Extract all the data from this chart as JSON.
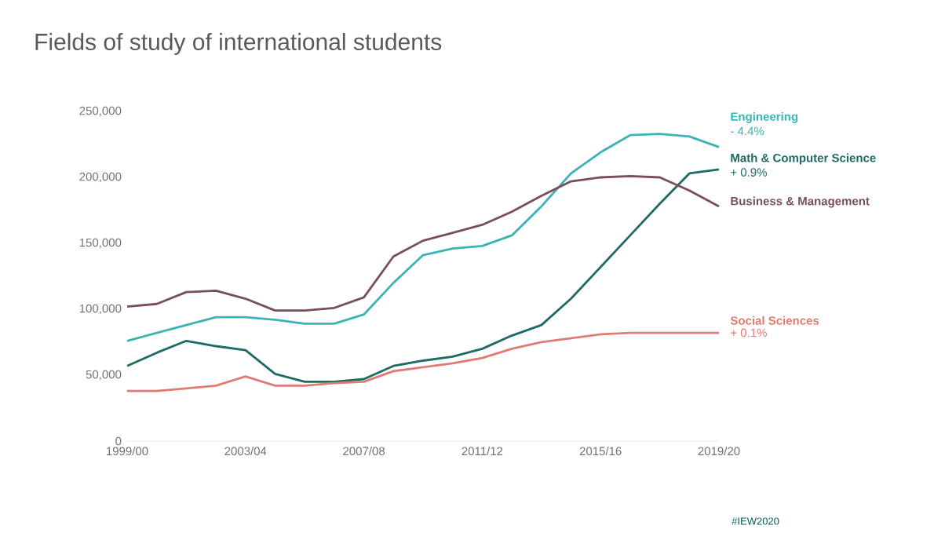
{
  "chart_data": {
    "type": "line",
    "title": "Fields of study of international students",
    "categories": [
      "1999/00",
      null,
      null,
      null,
      "2003/04",
      null,
      null,
      null,
      "2007/08",
      null,
      null,
      null,
      "2011/12",
      null,
      null,
      null,
      "2015/16",
      null,
      null,
      null,
      "2019/20"
    ],
    "series": [
      {
        "name": "Engineering",
        "color": "#3ab3b6",
        "values": [
          76000,
          82000,
          88000,
          94000,
          94000,
          92000,
          89000,
          89000,
          96000,
          120000,
          141000,
          146000,
          148000,
          156000,
          178000,
          203000,
          219000,
          232000,
          233000,
          231000,
          223000
        ]
      },
      {
        "name": "Math & Computer Science",
        "color": "#1e6b63",
        "values": [
          57000,
          67000,
          76000,
          72000,
          69000,
          51000,
          45000,
          45000,
          47000,
          57000,
          61000,
          64000,
          70000,
          80000,
          88000,
          108000,
          132000,
          156000,
          180000,
          203000,
          206000
        ]
      },
      {
        "name": "Business & Management",
        "color": "#7a4d5c",
        "values": [
          102000,
          104000,
          113000,
          114000,
          108000,
          99000,
          99000,
          101000,
          109000,
          140000,
          152000,
          158000,
          164000,
          174000,
          186000,
          197000,
          200000,
          201000,
          200000,
          190000,
          178000
        ]
      },
      {
        "name": "Social Sciences",
        "color": "#e07b74",
        "values": [
          38000,
          38000,
          40000,
          42000,
          49000,
          42000,
          42000,
          44000,
          45000,
          53000,
          56000,
          59000,
          63000,
          70000,
          75000,
          78000,
          81000,
          82000,
          82000,
          82000,
          82000
        ]
      }
    ],
    "ylim": [
      0,
      250000
    ],
    "yticks": [
      0,
      {
        "value": 50000,
        "label": "50,000"
      },
      {
        "value": 100000,
        "label": "100,000"
      },
      {
        "value": 150000,
        "label": "150,000"
      },
      {
        "value": 200000,
        "label": "200,000"
      },
      {
        "value": 250000,
        "label": "250,000"
      }
    ],
    "grid": false,
    "marker": "none",
    "line_style": "solid",
    "annotations": [
      "- 4.4%",
      "+ 0.9%",
      "+ 0.1%",
      "#IEW2020"
    ]
  }
}
